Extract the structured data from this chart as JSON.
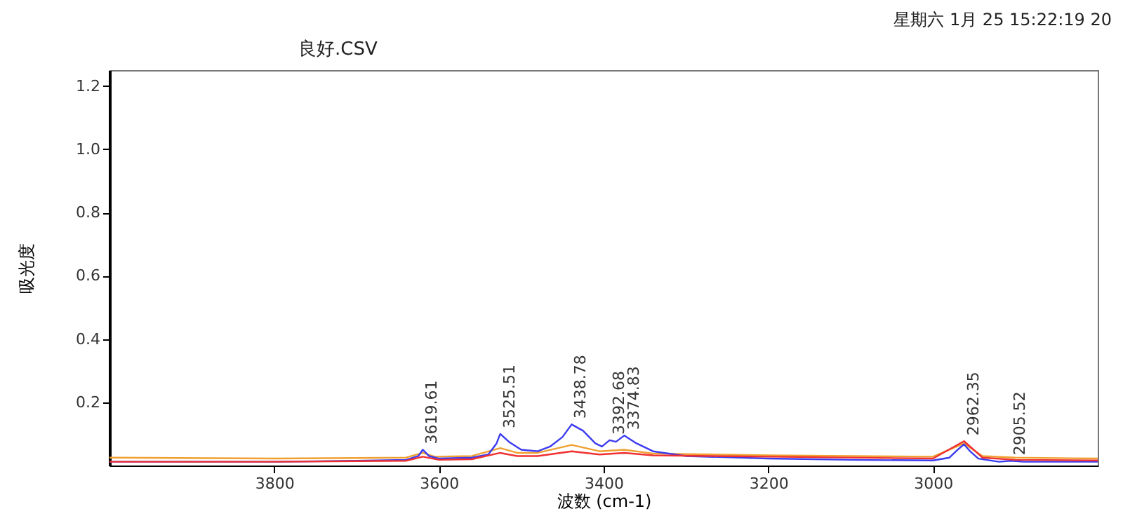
{
  "chart_data": {
    "type": "line",
    "title": "良好.CSV",
    "xlabel": "波数 (cm-1)",
    "ylabel": "吸光度",
    "xlim": [
      4000,
      2800
    ],
    "xticks": [
      3800,
      3600,
      3400,
      3200,
      3000
    ],
    "ylim": [
      0,
      1.25
    ],
    "yticks": [
      0.2,
      0.4,
      0.6,
      0.8,
      {
        "value": 1,
        "label": "1.0"
      },
      1.2
    ],
    "grid": false,
    "legend": false,
    "line_style": "solid",
    "series": [
      {
        "color": "#f0a030",
        "x": [
          4000,
          3800,
          3640,
          3619.61,
          3605,
          3560,
          3525.51,
          3505,
          3480,
          3438.78,
          3405,
          3374.83,
          3340,
          3200,
          3000,
          2962.35,
          2940,
          2900,
          2800
        ],
        "values": [
          0.025,
          0.022,
          0.025,
          0.04,
          0.028,
          0.03,
          0.055,
          0.04,
          0.04,
          0.065,
          0.045,
          0.05,
          0.038,
          0.032,
          0.028,
          0.07,
          0.03,
          0.025,
          0.022
        ]
      },
      {
        "color": "#3b3bf0",
        "x": [
          4000,
          3800,
          3700,
          3640,
          3625,
          3619.61,
          3612,
          3600,
          3560,
          3540,
          3530,
          3525.51,
          3515,
          3500,
          3480,
          3465,
          3450,
          3438.78,
          3425,
          3410,
          3402,
          3392.68,
          3385,
          3374.83,
          3360,
          3340,
          3300,
          3200,
          3100,
          3000,
          2980,
          2970,
          2962.35,
          2955,
          2945,
          2920,
          2905.52,
          2890,
          2800
        ],
        "values": [
          0.012,
          0.012,
          0.015,
          0.018,
          0.03,
          0.05,
          0.03,
          0.022,
          0.025,
          0.035,
          0.07,
          0.1,
          0.075,
          0.05,
          0.045,
          0.06,
          0.09,
          0.13,
          0.11,
          0.07,
          0.06,
          0.08,
          0.075,
          0.095,
          0.07,
          0.045,
          0.03,
          0.022,
          0.018,
          0.016,
          0.025,
          0.05,
          0.067,
          0.045,
          0.022,
          0.012,
          0.015,
          0.012,
          0.012
        ]
      },
      {
        "color": "#f03030",
        "x": [
          4000,
          3800,
          3640,
          3619.61,
          3600,
          3560,
          3525.51,
          3505,
          3480,
          3438.78,
          3405,
          3374.83,
          3340,
          3200,
          3000,
          2962.35,
          2940,
          2900,
          2800
        ],
        "values": [
          0.012,
          0.012,
          0.015,
          0.028,
          0.018,
          0.02,
          0.04,
          0.03,
          0.03,
          0.045,
          0.035,
          0.04,
          0.032,
          0.028,
          0.022,
          0.077,
          0.025,
          0.018,
          0.016
        ]
      }
    ],
    "annotations": [
      "星期六 1月 25 15:22:19 20",
      {
        "text": "3619.61",
        "x": 3619.61,
        "y": 0.05
      },
      {
        "text": "3525.51",
        "x": 3525.51,
        "y": 0.1
      },
      {
        "text": "3438.78",
        "x": 3438.78,
        "y": 0.13
      },
      {
        "text": "3392.68",
        "x": 3392.68,
        "y": 0.08
      },
      {
        "text": "3374.83",
        "x": 3374.83,
        "y": 0.095
      },
      {
        "text": "2962.35",
        "x": 2962.35,
        "y": 0.077
      },
      {
        "text": "2905.52",
        "x": 2905.52,
        "y": 0.015
      }
    ]
  }
}
